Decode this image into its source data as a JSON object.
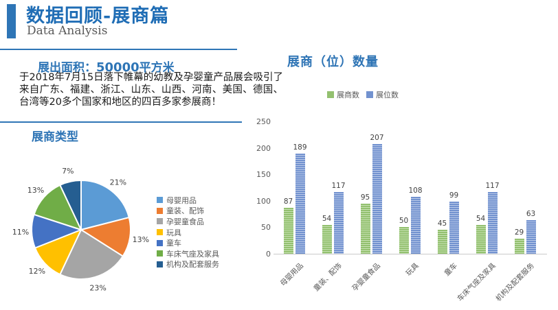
{
  "header": {
    "title": "数据回顾-展商篇",
    "subtitle": "Data Analysis",
    "accent_color": "#2E75B6"
  },
  "left_panel": {
    "area_label": "展出面积：",
    "area_value": "50000",
    "area_unit": "平方米",
    "paragraph": "于2018年7月15日落下帷幕的幼教及孕婴童产品展会吸引了来自广东、福建、浙江、山东、山西、河南、美国、德国、台湾等20多个国家和地区的四百多家参展商！",
    "pie_section_title": "展商类型"
  },
  "right_panel": {
    "bar_section_title": "展商（位）数量"
  },
  "chart_data": [
    {
      "type": "pie",
      "title": "展商类型",
      "labels": [
        "母婴用品",
        "童装、配饰",
        "孕婴童食品",
        "玩具",
        "童车",
        "车床气座及家具",
        "机构及配套服务"
      ],
      "values": [
        21,
        13,
        23,
        12,
        11,
        13,
        7
      ],
      "unit": "%",
      "colors": [
        "#5B9BD5",
        "#ED7D31",
        "#A5A5A5",
        "#FFC000",
        "#4472C4",
        "#70AD47",
        "#255E91"
      ],
      "legend_position": "right",
      "data_labels": [
        "21%",
        "13%",
        "23%",
        "12%",
        "11%",
        "13%",
        "7%"
      ]
    },
    {
      "type": "bar",
      "title": "展商（位）数量",
      "categories": [
        "母婴用品",
        "童装、配饰",
        "孕婴童食品",
        "玩具",
        "童车",
        "车床气座及家具",
        "机构及配套服务"
      ],
      "series": [
        {
          "name": "展商数",
          "color": "#93c06f",
          "values": [
            87,
            54,
            95,
            50,
            45,
            54,
            29
          ]
        },
        {
          "name": "展位数",
          "color": "#7292cf",
          "values": [
            189,
            117,
            207,
            108,
            99,
            117,
            63
          ]
        }
      ],
      "ylim": [
        0,
        250
      ],
      "yticks": [
        0,
        50,
        100,
        150,
        200,
        250
      ],
      "grid": false,
      "legend_position": "top"
    }
  ]
}
